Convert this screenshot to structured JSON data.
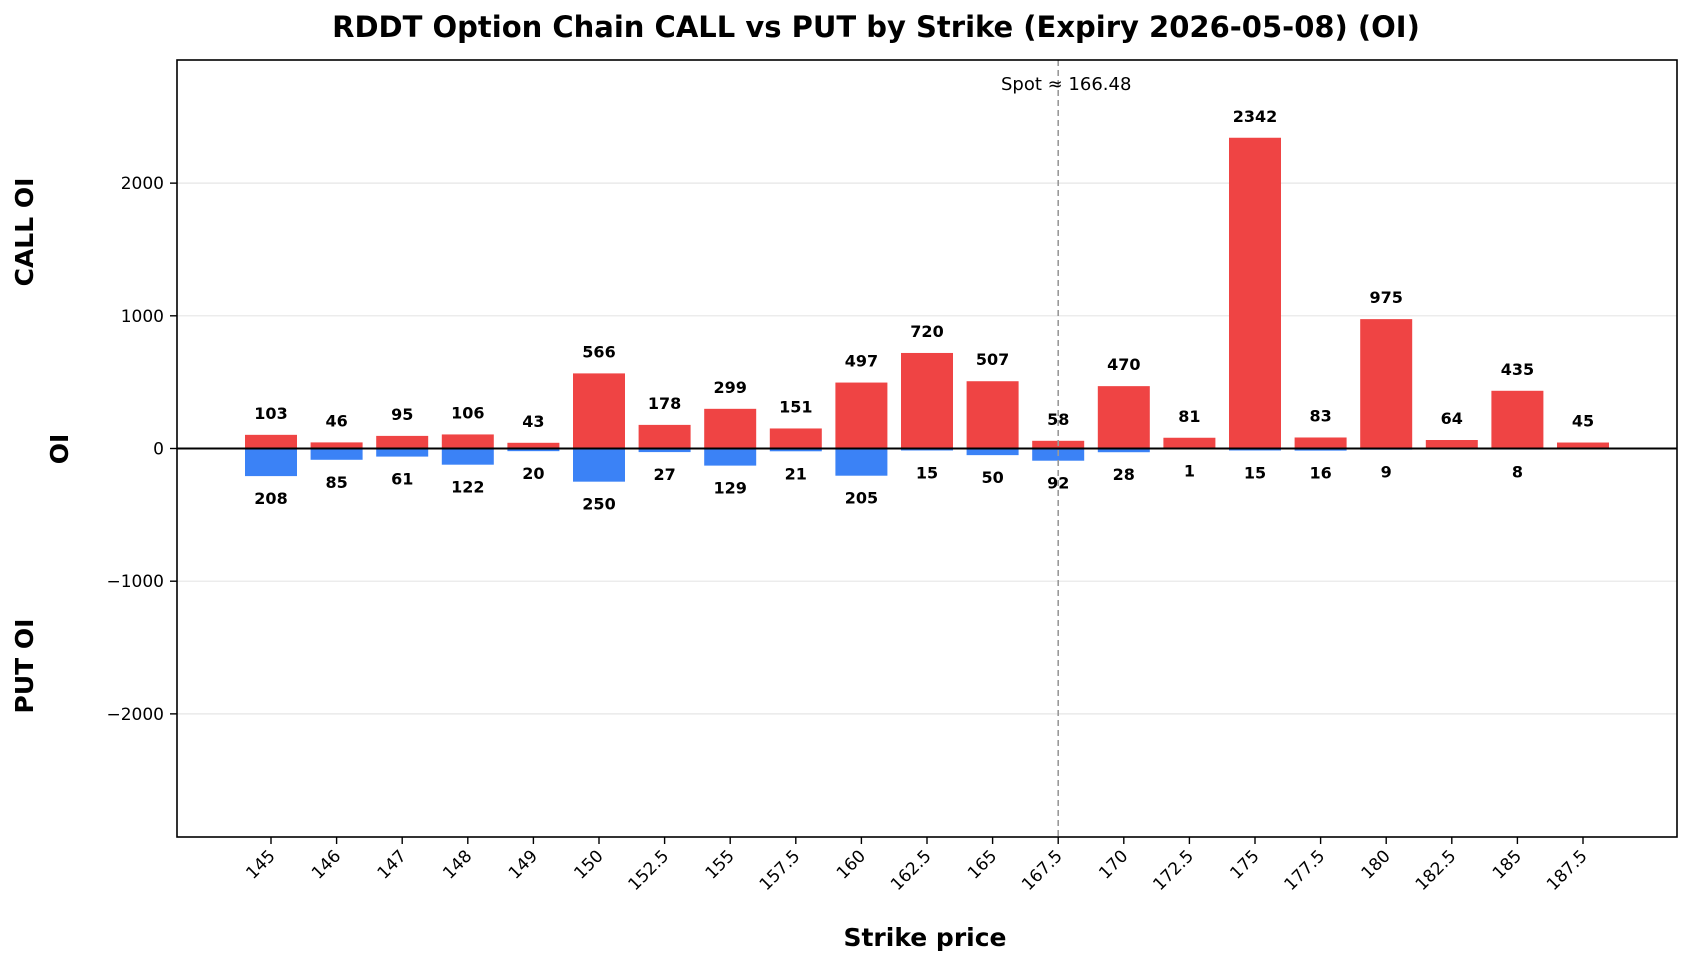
{
  "chart_data": {
    "type": "bar",
    "title": "RDDT Option Chain CALL vs PUT by Strike (Expiry 2026-05-08) (OI)",
    "xlabel": "Strike price",
    "ylabel": "OI",
    "ylabel_top": "CALL OI",
    "ylabel_bottom": "PUT OI",
    "categories": [
      "145",
      "146",
      "147",
      "148",
      "149",
      "150",
      "152.5",
      "155",
      "157.5",
      "160",
      "162.5",
      "165",
      "167.5",
      "170",
      "172.5",
      "175",
      "177.5",
      "180",
      "182.5",
      "185",
      "187.5"
    ],
    "series": [
      {
        "name": "CALL",
        "color": "#ef4444",
        "direction": "up",
        "values": [
          103,
          46,
          95,
          106,
          43,
          566,
          178,
          299,
          151,
          497,
          720,
          507,
          58,
          470,
          81,
          2342,
          83,
          975,
          64,
          435,
          45
        ],
        "labels": [
          "103",
          "46",
          "95",
          "106",
          "43",
          "566",
          "178",
          "299",
          "151",
          "497",
          "720",
          "507",
          "58",
          "470",
          "81",
          "2342",
          "83",
          "975",
          "64",
          "435",
          "45"
        ]
      },
      {
        "name": "PUT",
        "color": "#3b82f6",
        "direction": "down",
        "values": [
          208,
          85,
          61,
          122,
          20,
          250,
          27,
          129,
          21,
          205,
          15,
          50,
          92,
          28,
          1,
          15,
          16,
          9,
          0,
          8,
          0
        ],
        "labels": [
          "208",
          "85",
          "61",
          "122",
          "20",
          "250",
          "27",
          "129",
          "21",
          "205",
          "15",
          "50",
          "92",
          "28",
          "1",
          "15",
          "16",
          "9",
          "",
          "8",
          ""
        ]
      }
    ],
    "ylim": [
      -2928,
      2928
    ],
    "yticks": [
      -2000,
      -1000,
      0,
      1000,
      2000
    ],
    "ytick_labels": [
      "−2000",
      "−1000",
      "0",
      "1000",
      "2000"
    ],
    "grid": "horizontal",
    "spot": {
      "value": 166.48,
      "label": "Spot ≈ 166.48",
      "position_category": "167.5"
    },
    "zero_line_color": "#000000",
    "spot_line_color": "#999999"
  }
}
